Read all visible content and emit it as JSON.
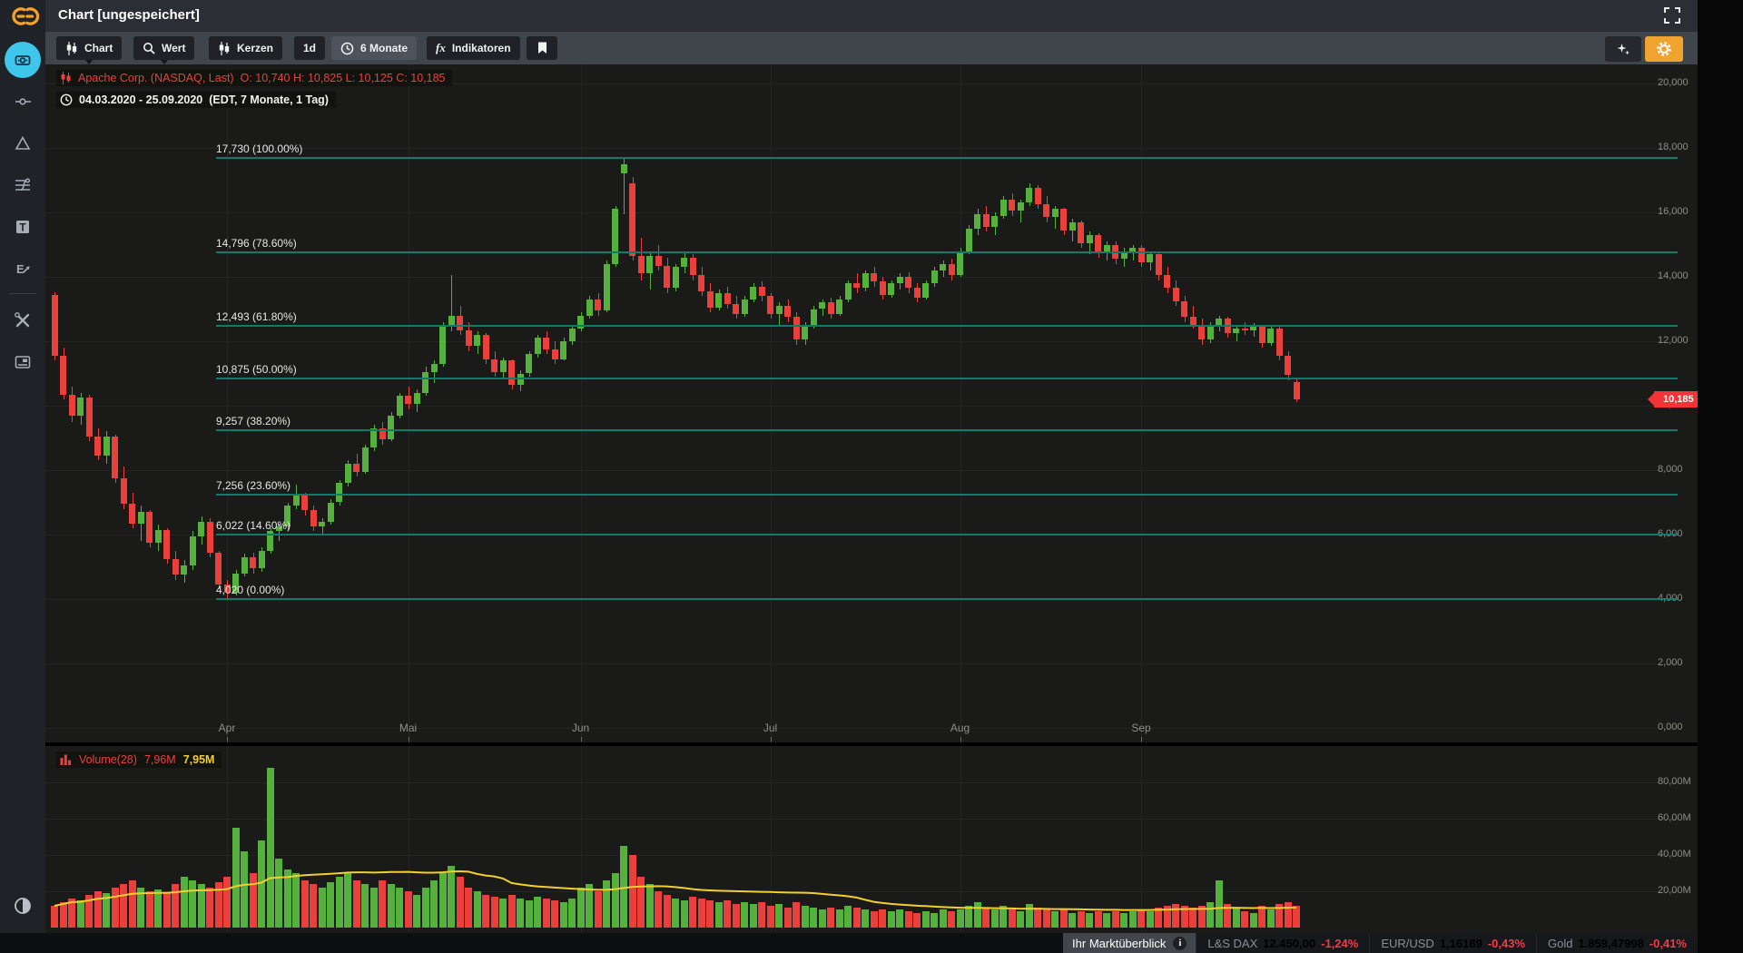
{
  "window": {
    "title": "Chart [ungespeichert]"
  },
  "toolbar": {
    "buttons": [
      {
        "label": "Chart",
        "icon": "candles-icon"
      },
      {
        "label": "Wert",
        "icon": "search-icon"
      },
      {
        "label": "Kerzen",
        "icon": "candles-icon"
      },
      {
        "label": "1d",
        "icon": ""
      },
      {
        "label": "6 Monate",
        "icon": "clock-icon"
      },
      {
        "label": "Indikatoren",
        "icon": "fx-icon"
      }
    ]
  },
  "legend": {
    "instrument": "Apache Corp. (NASDAQ, Last)",
    "ohlc": "O: 10,740  H: 10,825  L: 10,125  C: 10,185",
    "date_range": "04.03.2020 - 25.09.2020",
    "date_meta": "(EDT, 7 Monate, 1 Tag)"
  },
  "volume_legend": {
    "name": "Volume(28)",
    "value": "7,96M",
    "ma_value": "7,95M"
  },
  "price_tag": "10,185",
  "status_bar": {
    "overview_label": "Ihr Marktüberblick",
    "info_glyph": "i",
    "tickers": [
      {
        "label": "L&S DAX",
        "value": "12.450,00",
        "value_color": "#ffffff",
        "change": "-1,24%"
      },
      {
        "label": "EUR/USD",
        "value": "1,16189",
        "value_color": "#3fae49",
        "change": "-0,43%"
      },
      {
        "label": "Gold",
        "value": "1.859,47998",
        "value_color": "#ffffff",
        "change": "-0,41%"
      }
    ]
  },
  "colors": {
    "up": "#55b13c",
    "down": "#e9403c",
    "fib": "#0d7c6a",
    "volume_ma": "#f2cf2c",
    "accent_cyan": "#3ec7ea",
    "accent_orange": "#f3a32a",
    "tag_red": "#f43336"
  },
  "chart_data": {
    "type": "candlestick",
    "title": "Apache Corp. (NASDAQ, Last), 1 Tag",
    "date_range": "04.03.2020 - 25.09.2020",
    "y_axis": {
      "min": 0,
      "max": 20,
      "tick_step": 2,
      "labels": [
        "20,000",
        "18,000",
        "16,000",
        "14,000",
        "12,000",
        "10,000",
        "8,000",
        "6,000",
        "4,000",
        "2,000",
        "0,000"
      ]
    },
    "x_axis": {
      "months": [
        {
          "label": "Apr",
          "index": 20
        },
        {
          "label": "Mai",
          "index": 41
        },
        {
          "label": "Jun",
          "index": 61
        },
        {
          "label": "Jul",
          "index": 83
        },
        {
          "label": "Aug",
          "index": 105
        },
        {
          "label": "Sep",
          "index": 126
        }
      ]
    },
    "fib_levels": [
      {
        "price": 17.73,
        "label": "17,730 (100.00%)"
      },
      {
        "price": 14.796,
        "label": "14,796 (78.60%)"
      },
      {
        "price": 12.493,
        "label": "12,493 (61.80%)"
      },
      {
        "price": 10.875,
        "label": "10,875 (50.00%)"
      },
      {
        "price": 9.257,
        "label": "9,257 (38.20%)"
      },
      {
        "price": 7.256,
        "label": "7,256 (23.60%)"
      },
      {
        "price": 6.022,
        "label": "6,022 (14.60%)"
      },
      {
        "price": 4.02,
        "label": "4,020 (0.00%)"
      }
    ],
    "last_price": 10.185,
    "candles": [
      [
        13.45,
        13.53,
        11.4,
        11.55
      ],
      [
        11.55,
        11.8,
        10.2,
        10.35
      ],
      [
        10.35,
        10.6,
        9.5,
        9.7
      ],
      [
        9.7,
        10.4,
        9.4,
        10.25
      ],
      [
        10.25,
        10.35,
        8.9,
        9.05
      ],
      [
        9.05,
        9.3,
        8.3,
        8.45
      ],
      [
        8.45,
        9.2,
        8.2,
        9.05
      ],
      [
        9.05,
        9.1,
        7.6,
        7.75
      ],
      [
        7.75,
        8.1,
        6.8,
        6.95
      ],
      [
        6.95,
        7.3,
        6.2,
        6.35
      ],
      [
        6.35,
        6.9,
        5.8,
        6.7
      ],
      [
        6.7,
        6.75,
        5.6,
        5.75
      ],
      [
        5.75,
        6.3,
        5.5,
        6.15
      ],
      [
        6.15,
        6.2,
        5.1,
        5.25
      ],
      [
        5.25,
        5.5,
        4.6,
        4.75
      ],
      [
        4.75,
        5.2,
        4.5,
        5.05
      ],
      [
        5.05,
        6.1,
        4.9,
        5.95
      ],
      [
        5.95,
        6.55,
        5.7,
        6.4
      ],
      [
        6.4,
        6.5,
        5.3,
        5.45
      ],
      [
        5.45,
        5.5,
        4.3,
        4.45
      ],
      [
        4.45,
        4.6,
        4.02,
        4.2
      ],
      [
        4.2,
        4.9,
        4.1,
        4.8
      ],
      [
        4.8,
        5.4,
        4.7,
        5.3
      ],
      [
        5.3,
        5.45,
        4.8,
        4.95
      ],
      [
        4.95,
        5.6,
        4.85,
        5.5
      ],
      [
        5.5,
        6.2,
        5.4,
        6.1
      ],
      [
        6.1,
        6.35,
        5.8,
        6.25
      ],
      [
        6.25,
        7.0,
        6.15,
        6.9
      ],
      [
        6.9,
        7.55,
        6.8,
        7.2
      ],
      [
        7.2,
        7.3,
        6.6,
        6.75
      ],
      [
        6.75,
        6.9,
        6.1,
        6.25
      ],
      [
        6.25,
        6.5,
        6.0,
        6.4
      ],
      [
        6.4,
        7.1,
        6.3,
        7.0
      ],
      [
        7.0,
        7.7,
        6.9,
        7.6
      ],
      [
        7.6,
        8.3,
        7.5,
        8.2
      ],
      [
        8.2,
        8.5,
        7.8,
        7.95
      ],
      [
        7.95,
        8.8,
        7.9,
        8.7
      ],
      [
        8.7,
        9.4,
        8.6,
        9.3
      ],
      [
        9.3,
        9.5,
        8.8,
        8.95
      ],
      [
        8.95,
        9.8,
        8.9,
        9.7
      ],
      [
        9.7,
        10.4,
        9.6,
        10.3
      ],
      [
        10.3,
        10.6,
        9.9,
        10.05
      ],
      [
        10.05,
        10.5,
        9.8,
        10.4
      ],
      [
        10.4,
        11.2,
        10.3,
        11.05
      ],
      [
        11.05,
        11.4,
        10.7,
        11.3
      ],
      [
        11.3,
        12.6,
        11.2,
        12.45
      ],
      [
        12.45,
        14.05,
        12.3,
        12.8
      ],
      [
        12.8,
        13.1,
        12.2,
        12.35
      ],
      [
        12.35,
        12.6,
        11.7,
        11.85
      ],
      [
        11.85,
        12.3,
        11.6,
        12.2
      ],
      [
        12.2,
        12.25,
        11.3,
        11.45
      ],
      [
        11.45,
        11.7,
        10.9,
        11.05
      ],
      [
        11.05,
        11.5,
        10.85,
        11.4
      ],
      [
        11.4,
        11.45,
        10.5,
        10.65
      ],
      [
        10.65,
        11.1,
        10.45,
        11.0
      ],
      [
        11.0,
        11.7,
        10.9,
        11.6
      ],
      [
        11.6,
        12.2,
        11.5,
        12.1
      ],
      [
        12.1,
        12.3,
        11.6,
        11.75
      ],
      [
        11.75,
        12.0,
        11.3,
        11.45
      ],
      [
        11.45,
        12.1,
        11.4,
        12.0
      ],
      [
        12.0,
        12.5,
        11.9,
        12.4
      ],
      [
        12.4,
        12.9,
        12.3,
        12.8
      ],
      [
        12.8,
        13.4,
        12.7,
        13.3
      ],
      [
        13.3,
        13.5,
        12.8,
        12.95
      ],
      [
        12.95,
        14.5,
        12.9,
        14.4
      ],
      [
        14.4,
        16.2,
        14.3,
        16.1
      ],
      [
        17.2,
        17.73,
        15.95,
        17.5
      ],
      [
        16.9,
        17.1,
        14.5,
        14.65
      ],
      [
        14.65,
        15.2,
        13.9,
        14.1
      ],
      [
        14.1,
        14.8,
        13.6,
        14.65
      ],
      [
        14.65,
        15.0,
        14.2,
        14.35
      ],
      [
        14.35,
        14.6,
        13.5,
        13.65
      ],
      [
        13.65,
        14.4,
        13.55,
        14.3
      ],
      [
        14.3,
        14.796,
        14.1,
        14.6
      ],
      [
        14.6,
        14.7,
        13.9,
        14.05
      ],
      [
        14.05,
        14.3,
        13.4,
        13.55
      ],
      [
        13.55,
        13.8,
        12.9,
        13.05
      ],
      [
        13.05,
        13.6,
        12.95,
        13.5
      ],
      [
        13.5,
        13.7,
        13.0,
        13.15
      ],
      [
        13.15,
        13.4,
        12.7,
        12.85
      ],
      [
        12.85,
        13.4,
        12.75,
        13.3
      ],
      [
        13.3,
        13.8,
        13.2,
        13.7
      ],
      [
        13.7,
        13.85,
        13.25,
        13.4
      ],
      [
        13.4,
        13.5,
        12.7,
        12.85
      ],
      [
        12.85,
        13.2,
        12.49,
        13.1
      ],
      [
        13.1,
        13.3,
        12.6,
        12.75
      ],
      [
        12.75,
        12.9,
        11.9,
        12.05
      ],
      [
        12.05,
        12.6,
        11.9,
        12.5
      ],
      [
        12.5,
        13.1,
        12.4,
        13.0
      ],
      [
        13.0,
        13.3,
        12.8,
        13.2
      ],
      [
        13.2,
        13.35,
        12.7,
        12.85
      ],
      [
        12.85,
        13.4,
        12.8,
        13.3
      ],
      [
        13.3,
        13.9,
        13.2,
        13.8
      ],
      [
        13.8,
        14.1,
        13.5,
        13.65
      ],
      [
        13.65,
        14.2,
        13.55,
        14.1
      ],
      [
        14.1,
        14.3,
        13.7,
        13.85
      ],
      [
        13.85,
        14.0,
        13.3,
        13.45
      ],
      [
        13.45,
        13.9,
        13.35,
        13.8
      ],
      [
        13.8,
        14.1,
        13.6,
        14.0
      ],
      [
        14.0,
        14.15,
        13.5,
        13.65
      ],
      [
        13.65,
        13.8,
        13.2,
        13.35
      ],
      [
        13.35,
        13.9,
        13.3,
        13.8
      ],
      [
        13.8,
        14.3,
        13.7,
        14.2
      ],
      [
        14.2,
        14.5,
        14.0,
        14.4
      ],
      [
        14.4,
        14.55,
        13.9,
        14.05
      ],
      [
        14.05,
        14.9,
        14.0,
        14.8
      ],
      [
        14.8,
        15.6,
        14.7,
        15.5
      ],
      [
        15.5,
        16.1,
        15.3,
        15.95
      ],
      [
        15.95,
        16.2,
        15.4,
        15.55
      ],
      [
        15.55,
        16.0,
        15.3,
        15.9
      ],
      [
        15.9,
        16.5,
        15.8,
        16.4
      ],
      [
        16.4,
        16.6,
        15.9,
        16.05
      ],
      [
        16.05,
        16.4,
        15.7,
        16.3
      ],
      [
        16.3,
        16.9,
        16.2,
        16.75
      ],
      [
        16.75,
        16.85,
        16.1,
        16.25
      ],
      [
        16.25,
        16.5,
        15.7,
        15.85
      ],
      [
        15.85,
        16.2,
        15.5,
        16.1
      ],
      [
        16.1,
        16.15,
        15.3,
        15.45
      ],
      [
        15.45,
        15.8,
        15.1,
        15.7
      ],
      [
        15.7,
        15.75,
        14.9,
        15.05
      ],
      [
        15.05,
        15.4,
        14.7,
        15.3
      ],
      [
        15.3,
        15.35,
        14.6,
        14.75
      ],
      [
        14.75,
        15.1,
        14.5,
        15.0
      ],
      [
        15.0,
        15.1,
        14.4,
        14.55
      ],
      [
        14.55,
        14.9,
        14.3,
        14.8
      ],
      [
        14.8,
        15.0,
        14.5,
        14.9
      ],
      [
        14.9,
        15.0,
        14.3,
        14.45
      ],
      [
        14.45,
        14.8,
        14.2,
        14.7
      ],
      [
        14.7,
        14.75,
        13.9,
        14.05
      ],
      [
        14.05,
        14.3,
        13.5,
        13.65
      ],
      [
        13.65,
        13.9,
        13.1,
        13.25
      ],
      [
        13.25,
        13.4,
        12.6,
        12.75
      ],
      [
        12.75,
        13.1,
        12.4,
        12.5
      ],
      [
        12.5,
        12.7,
        11.9,
        12.05
      ],
      [
        12.05,
        12.6,
        11.95,
        12.5
      ],
      [
        12.5,
        12.8,
        12.3,
        12.7
      ],
      [
        12.7,
        12.75,
        12.1,
        12.25
      ],
      [
        12.25,
        12.5,
        12.0,
        12.4
      ],
      [
        12.4,
        12.6,
        12.2,
        12.35
      ],
      [
        12.35,
        12.55,
        12.15,
        12.45
      ],
      [
        12.45,
        12.5,
        11.8,
        11.95
      ],
      [
        11.95,
        12.49,
        11.85,
        12.4
      ],
      [
        12.4,
        12.45,
        11.4,
        11.55
      ],
      [
        11.55,
        11.7,
        10.8,
        10.95
      ],
      [
        10.74,
        10.825,
        10.125,
        10.185
      ]
    ],
    "volume": {
      "ma_period": 28,
      "axis_labels": [
        "80,00M",
        "60,00M",
        "40,00M",
        "20,00M"
      ],
      "axis_values": [
        80,
        60,
        40,
        20
      ],
      "values": [
        12,
        14,
        16,
        15,
        18,
        20,
        19,
        22,
        24,
        26,
        22,
        20,
        21,
        19,
        24,
        28,
        26,
        24,
        22,
        25,
        28,
        55,
        42,
        30,
        48,
        88,
        38,
        32,
        30,
        26,
        24,
        22,
        25,
        28,
        30,
        26,
        24,
        22,
        26,
        24,
        22,
        20,
        18,
        22,
        26,
        30,
        34,
        28,
        22,
        20,
        18,
        17,
        16,
        18,
        16,
        15,
        17,
        16,
        15,
        14,
        16,
        22,
        24,
        20,
        26,
        30,
        45,
        40,
        28,
        24,
        20,
        18,
        16,
        15,
        17,
        16,
        15,
        14,
        15,
        13,
        14,
        13,
        14,
        12,
        13,
        11,
        14,
        12,
        11,
        10,
        11,
        10,
        12,
        11,
        10,
        9,
        10,
        9,
        10,
        9,
        8,
        9,
        8,
        10,
        9,
        10,
        12,
        14,
        11,
        10,
        12,
        10,
        9,
        13,
        11,
        10,
        9,
        10,
        8,
        9,
        8,
        9,
        8,
        9,
        8,
        9,
        10,
        9,
        11,
        12,
        13,
        12,
        11,
        12,
        14,
        26,
        13,
        11,
        9,
        8,
        12,
        10,
        13,
        14,
        12
      ]
    }
  }
}
